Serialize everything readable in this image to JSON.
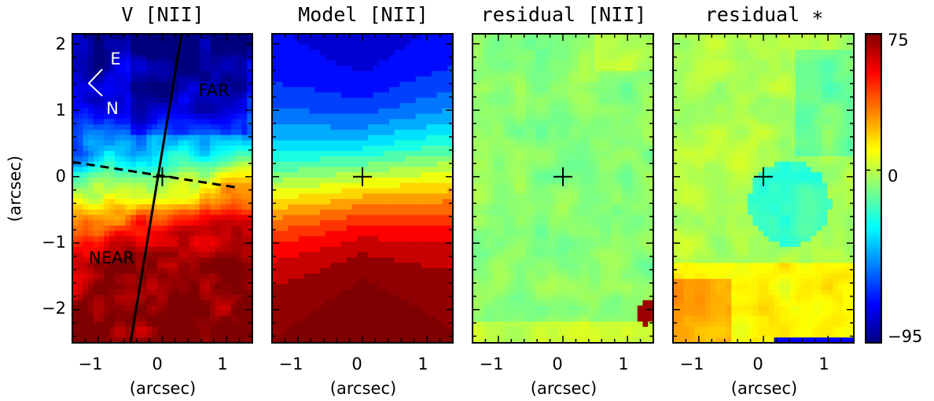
{
  "figure": {
    "panels": [
      {
        "title": "V [NII]",
        "xlabel": "(arcsec)",
        "ylabel": "(arcsec)",
        "map": "velocity"
      },
      {
        "title": "Model [NII]",
        "xlabel": "(arcsec)",
        "ylabel": "",
        "map": "model"
      },
      {
        "title": "residual [NII]",
        "xlabel": "(arcsec)",
        "ylabel": "",
        "map": "residual_gas"
      },
      {
        "title": "residual ∗",
        "xlabel": "(arcsec)",
        "ylabel": "",
        "map": "residual_star"
      }
    ],
    "annotations": {
      "east": "E",
      "north": "N",
      "far": "FAR",
      "near": "NEAR"
    },
    "colorbar": {
      "min": -95,
      "max": 75,
      "tick_labels": [
        "75",
        "0",
        "−95"
      ],
      "tick_values": [
        75,
        0,
        -95
      ]
    }
  },
  "chart_data": {
    "type": "heatmap",
    "xlim": [
      -1.4,
      1.4
    ],
    "ylim": [
      -2.5,
      2.15
    ],
    "x_ticks": [
      -1,
      0,
      1
    ],
    "y_ticks": [
      -2,
      -1,
      0,
      1,
      2
    ],
    "x_tick_labels": [
      "−1",
      "0",
      "1"
    ],
    "y_tick_labels": [
      "−2",
      "−1",
      "0",
      "1",
      "2"
    ],
    "value_range": [
      -95,
      75
    ],
    "center_marker": [
      0,
      0
    ],
    "kinematic_major_axis": {
      "pa_deg_from_north": 10,
      "through": [
        0,
        0
      ]
    },
    "kinematic_minor_axis": {
      "line_style": "dashed",
      "through": [
        0,
        0
      ]
    },
    "colormap_stops": [
      "#00007f",
      "#0000ff",
      "#007fff",
      "#00ffff",
      "#7fff7f",
      "#ffff00",
      "#ff7f00",
      "#ff0000",
      "#7f0000"
    ],
    "series": [
      {
        "name": "V [NII]",
        "peak_receding": 70,
        "peak_approaching": -85
      },
      {
        "name": "Model [NII]",
        "peak_receding": 70,
        "peak_approaching": -80
      },
      {
        "name": "residual [NII]",
        "typical": -15
      },
      {
        "name": "residual ∗",
        "typical": -10
      }
    ]
  }
}
